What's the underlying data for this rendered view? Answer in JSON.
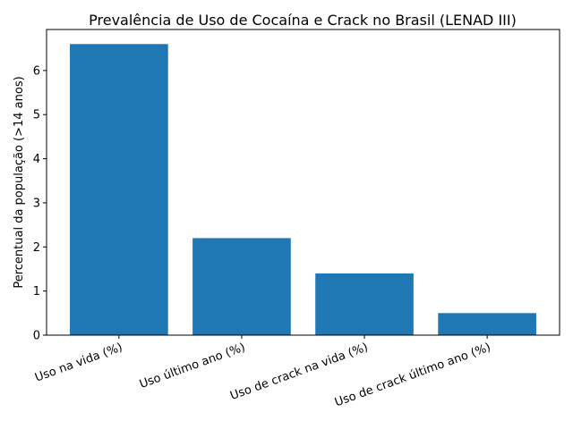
{
  "chart_data": {
    "type": "bar",
    "title": "Prevalência de Uso de Cocaína e Crack no Brasil (LENAD III)",
    "y_label": "Percentual da população (>14 anos)",
    "categories": [
      "Uso na vida (%)",
      "Uso último ano (%)",
      "Uso de crack na vida (%)",
      "Uso de crack último ano (%)"
    ],
    "values": [
      6.6,
      2.2,
      1.4,
      0.5
    ],
    "color": "#1f77b4",
    "ylim": [
      0,
      6.93
    ],
    "yticks": [
      0,
      1,
      2,
      3,
      4,
      5,
      6
    ]
  }
}
